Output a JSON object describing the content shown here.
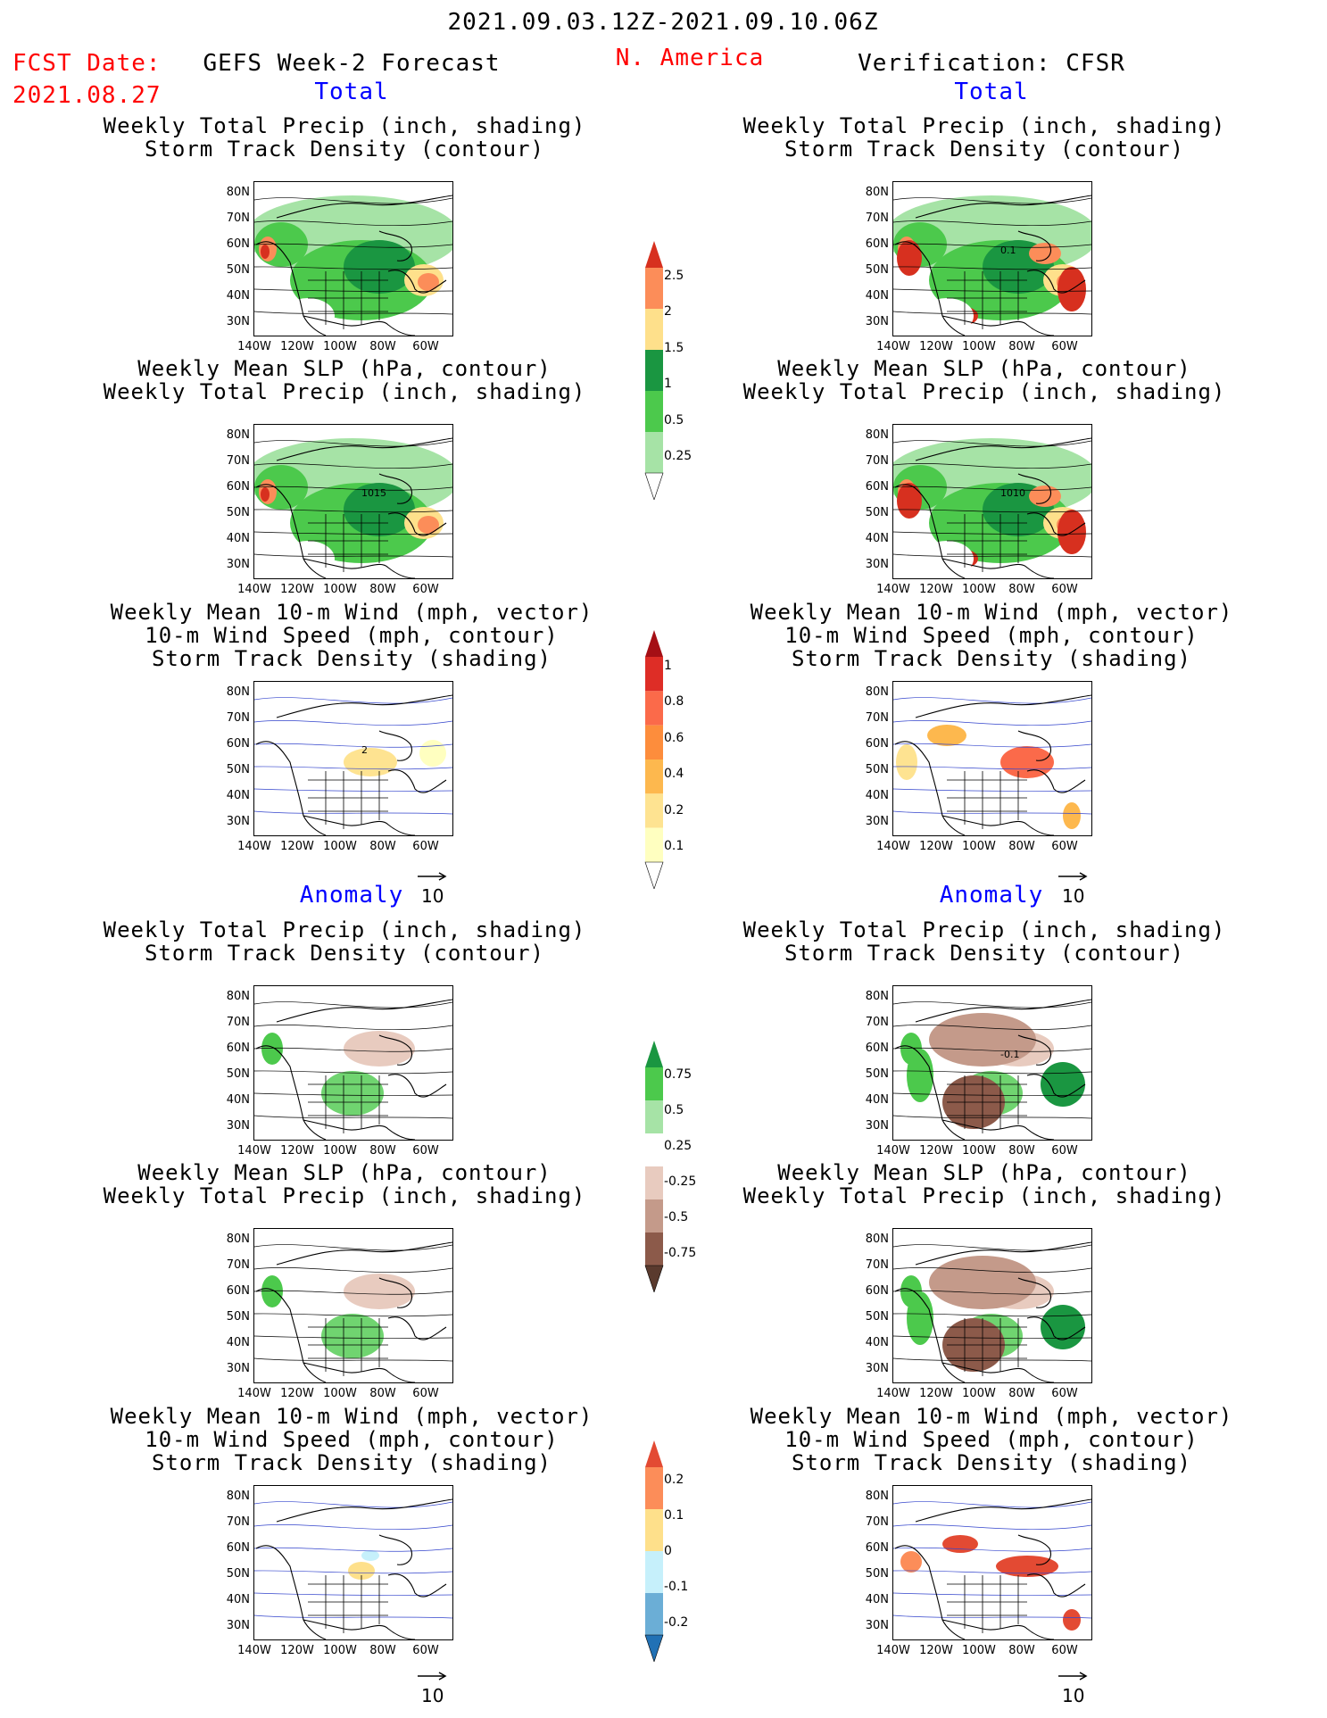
{
  "header": {
    "date_range": "2021.09.03.12Z-2021.09.10.06Z",
    "region": "N. America",
    "fcst_label": "FCST Date:",
    "fcst_date": "2021.08.27",
    "left_title": "GEFS Week-2 Forecast",
    "right_title": "Verification: CFSR",
    "total_left": "Total",
    "total_right": "Total",
    "anomaly_left": "Anomaly",
    "anomaly_right": "Anomaly"
  },
  "panel_titles": {
    "precip_track": [
      "Weekly Total Precip (inch, shading)",
      "Storm Track Density (contour)"
    ],
    "slp_precip": [
      "Weekly Mean SLP (hPa, contour)",
      "Weekly Total Precip (inch, shading)"
    ],
    "wind_track": [
      "Weekly Mean 10-m Wind (mph, vector)",
      "10-m Wind Speed (mph, contour)",
      "Storm Track Density (shading)"
    ]
  },
  "axes": {
    "lat_labels": [
      "80N",
      "70N",
      "60N",
      "50N",
      "40N",
      "30N"
    ],
    "lon_labels": [
      "140W",
      "120W",
      "100W",
      "80W",
      "60W"
    ]
  },
  "map_labels": {
    "gefs_slp_total": "1015",
    "cfsr_slp_total": "1010",
    "cfsr_track_total": "0.1",
    "cfsr_track_anom": "-0.1",
    "gefs_wind_total": "2"
  },
  "ref_vector": "10",
  "colorbars": {
    "precip_total": {
      "labels": [
        "2.5",
        "2",
        "1.5",
        "1",
        "0.5",
        "0.25"
      ],
      "colors": [
        "#d7301f",
        "#fc8d59",
        "#fee08b",
        "#1a9641",
        "#4cc94c",
        "#a6e3a6"
      ]
    },
    "track_total": {
      "labels": [
        "1",
        "0.8",
        "0.6",
        "0.4",
        "0.2",
        "0.1"
      ],
      "colors": [
        "#a50f15",
        "#de2d26",
        "#fb6a4a",
        "#fd8d3c",
        "#fdb84e",
        "#fee391",
        "#ffffc0"
      ]
    },
    "precip_anom": {
      "labels": [
        "0.75",
        "0.5",
        "0.25",
        "-0.25",
        "-0.5",
        "-0.75"
      ],
      "colors": [
        "#1a9641",
        "#4cc94c",
        "#a6e3a6",
        "#ffffff",
        "#e8cbbf",
        "#c49a8a",
        "#8c5a4a",
        "#5a3a2e"
      ]
    },
    "track_anom": {
      "labels": [
        "0.2",
        "0.1",
        "0",
        "-0.1",
        "-0.2"
      ],
      "colors": [
        "#e34a33",
        "#fc8d59",
        "#fee08b",
        "#c6f0fb",
        "#6baed6",
        "#2171b5"
      ]
    }
  }
}
